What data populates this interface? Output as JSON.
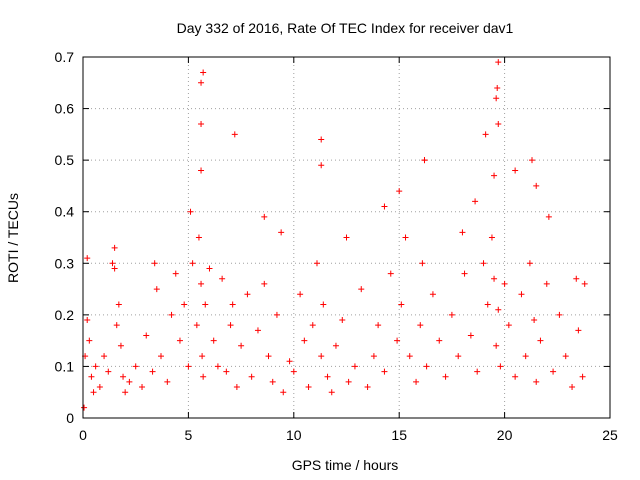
{
  "chart_data": {
    "type": "scatter",
    "title": "Day 332 of 2016, Rate Of TEC Index for receiver dav1",
    "xlabel": "GPS time / hours",
    "ylabel": "ROTI / TECUs",
    "xlim": [
      0,
      25
    ],
    "ylim": [
      0,
      0.7
    ],
    "x_ticks": [
      0,
      5,
      10,
      15,
      20,
      25
    ],
    "x_tick_labels": [
      "0",
      "5",
      "10",
      "15",
      "20",
      "25"
    ],
    "y_ticks": [
      0,
      0.1,
      0.2,
      0.3,
      0.4,
      0.5,
      0.6,
      0.7
    ],
    "y_tick_labels": [
      "0",
      "0.1",
      "0.2",
      "0.3",
      "0.4",
      "0.5",
      "0.6",
      "0.7"
    ],
    "grid": true,
    "marker": "+",
    "color": "#ff0000",
    "series": [
      {
        "name": "ROTI",
        "x": [
          0.05,
          0.1,
          0.2,
          0.3,
          0.4,
          0.5,
          0.6,
          0.8,
          1.0,
          1.2,
          1.4,
          1.5,
          1.6,
          1.7,
          1.8,
          1.9,
          2.0,
          2.2,
          2.5,
          2.8,
          3.0,
          3.3,
          3.5,
          3.7,
          4.0,
          4.2,
          4.4,
          4.6,
          4.8,
          5.0,
          5.2,
          5.4,
          5.5,
          5.6,
          5.65,
          5.7,
          5.8,
          6.0,
          6.2,
          6.4,
          6.6,
          6.8,
          7.0,
          7.1,
          7.3,
          7.5,
          7.8,
          8.0,
          8.3,
          8.6,
          8.8,
          9.0,
          9.2,
          9.5,
          9.8,
          10.0,
          10.3,
          10.5,
          10.7,
          10.9,
          11.1,
          11.3,
          11.4,
          11.6,
          11.8,
          12.0,
          12.3,
          12.6,
          12.9,
          13.2,
          13.5,
          13.8,
          14.0,
          14.3,
          14.6,
          14.9,
          15.1,
          15.3,
          15.5,
          15.8,
          16.0,
          16.1,
          16.3,
          16.6,
          16.9,
          17.2,
          17.5,
          17.8,
          18.1,
          18.4,
          18.7,
          19.0,
          19.2,
          19.4,
          19.5,
          19.6,
          19.7,
          19.8,
          20.0,
          20.2,
          20.5,
          20.8,
          21.0,
          21.2,
          21.4,
          21.5,
          21.7,
          22.0,
          22.3,
          22.6,
          22.9,
          23.2,
          23.5,
          23.7,
          0.2,
          1.5,
          3.4,
          5.1,
          5.6,
          5.6,
          5.6,
          5.7,
          7.2,
          8.6,
          9.4,
          11.3,
          11.3,
          12.5,
          14.3,
          15.0,
          16.2,
          16.2,
          18.0,
          18.6,
          19.1,
          19.6,
          19.7,
          19.7,
          19.65,
          19.5,
          20.5,
          21.3,
          21.5,
          22.1,
          23.4,
          23.8
        ],
        "y": [
          0.02,
          0.12,
          0.19,
          0.15,
          0.08,
          0.05,
          0.1,
          0.06,
          0.12,
          0.09,
          0.3,
          0.33,
          0.18,
          0.22,
          0.14,
          0.08,
          0.05,
          0.07,
          0.1,
          0.06,
          0.16,
          0.09,
          0.25,
          0.12,
          0.07,
          0.2,
          0.28,
          0.15,
          0.22,
          0.1,
          0.3,
          0.18,
          0.35,
          0.26,
          0.12,
          0.08,
          0.22,
          0.29,
          0.15,
          0.1,
          0.27,
          0.09,
          0.18,
          0.22,
          0.06,
          0.14,
          0.24,
          0.08,
          0.17,
          0.26,
          0.12,
          0.07,
          0.2,
          0.05,
          0.11,
          0.09,
          0.24,
          0.15,
          0.06,
          0.18,
          0.3,
          0.12,
          0.22,
          0.08,
          0.05,
          0.14,
          0.19,
          0.07,
          0.1,
          0.25,
          0.06,
          0.12,
          0.18,
          0.09,
          0.28,
          0.15,
          0.22,
          0.35,
          0.12,
          0.07,
          0.18,
          0.3,
          0.1,
          0.24,
          0.15,
          0.08,
          0.2,
          0.12,
          0.28,
          0.16,
          0.09,
          0.3,
          0.22,
          0.35,
          0.27,
          0.14,
          0.21,
          0.1,
          0.26,
          0.18,
          0.08,
          0.24,
          0.12,
          0.3,
          0.19,
          0.07,
          0.15,
          0.26,
          0.09,
          0.2,
          0.12,
          0.06,
          0.17,
          0.08,
          0.31,
          0.29,
          0.3,
          0.4,
          0.48,
          0.57,
          0.65,
          0.67,
          0.55,
          0.39,
          0.36,
          0.54,
          0.49,
          0.35,
          0.41,
          0.44,
          0.5,
          0.5,
          0.36,
          0.42,
          0.55,
          0.62,
          0.57,
          0.69,
          0.64,
          0.47,
          0.48,
          0.5,
          0.45,
          0.39,
          0.27,
          0.26
        ]
      }
    ]
  }
}
